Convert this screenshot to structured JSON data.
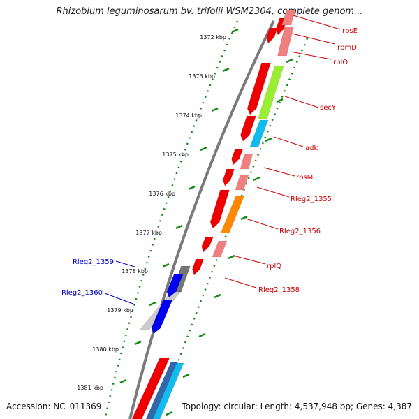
{
  "title": "Rhizobium leguminosarum bv. trifolii WSM2304, complete genom...",
  "footer": {
    "accession": "Accession: NC_011369",
    "summary": "Topology: circular; Length: 4,537,948 bp; Genes: 4,387"
  },
  "colors": {
    "backbone": "#7a7a7a",
    "tick_dots": "#118811",
    "gene_red": "#ee0000",
    "gene_pink": "#f08080",
    "gene_green": "#99ee33",
    "gene_cyan": "#11bbee",
    "gene_orange": "#ff8800",
    "gene_blue": "#0000ee",
    "gene_gray": "#777777",
    "gene_lightgray": "#cccccc",
    "label_red": "#cc0000",
    "label_blue": "#0000cc"
  },
  "ticks": [
    {
      "label": "1372 kbp"
    },
    {
      "label": "1373 kbp"
    },
    {
      "label": "1374 kbp"
    },
    {
      "label": "1375 kbp"
    },
    {
      "label": "1376 kbp"
    },
    {
      "label": "1377 kbp"
    },
    {
      "label": "1378 kbp"
    },
    {
      "label": "1379 kbp"
    },
    {
      "label": "1380 kbp"
    },
    {
      "label": "1381 kbp"
    }
  ],
  "gene_labels": [
    {
      "text": "rpsE",
      "color": "red"
    },
    {
      "text": "rpmD",
      "color": "red"
    },
    {
      "text": "rplO",
      "color": "red"
    },
    {
      "text": "secY",
      "color": "red"
    },
    {
      "text": "adk",
      "color": "red"
    },
    {
      "text": "rpsM",
      "color": "red"
    },
    {
      "text": "Rleg2_1355",
      "color": "red"
    },
    {
      "text": "Rleg2_1356",
      "color": "red"
    },
    {
      "text": "rplQ",
      "color": "red"
    },
    {
      "text": "Rleg2_1358",
      "color": "red"
    },
    {
      "text": "Rleg2_1359",
      "color": "blue"
    },
    {
      "text": "Rleg2_1360",
      "color": "blue"
    }
  ]
}
